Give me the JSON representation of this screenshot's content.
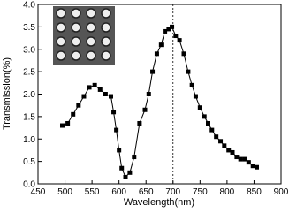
{
  "chart_data": {
    "type": "line",
    "x_label": "Wavelength(nm)",
    "y_label": "Transmission(%)",
    "x": [
      495,
      505,
      515,
      525,
      535,
      545,
      555,
      565,
      575,
      585,
      590,
      595,
      600,
      605,
      612,
      620,
      628,
      638,
      648,
      655,
      662,
      670,
      678,
      685,
      692,
      698,
      705,
      712,
      720,
      728,
      735,
      742,
      750,
      758,
      765,
      772,
      780,
      788,
      795,
      803,
      810,
      818,
      825,
      833,
      840,
      848,
      855
    ],
    "values": [
      1.3,
      1.35,
      1.55,
      1.75,
      1.95,
      2.15,
      2.2,
      2.1,
      2.0,
      1.95,
      1.6,
      1.2,
      0.75,
      0.35,
      0.15,
      0.25,
      0.6,
      1.35,
      1.65,
      2.0,
      2.5,
      2.9,
      3.1,
      3.4,
      3.45,
      3.5,
      3.3,
      3.2,
      2.9,
      2.5,
      2.2,
      1.95,
      1.7,
      1.5,
      1.35,
      1.2,
      1.05,
      0.95,
      0.85,
      0.75,
      0.7,
      0.6,
      0.55,
      0.55,
      0.48,
      0.4,
      0.37
    ],
    "color": "#000000",
    "marker": "square",
    "xlim": [
      450,
      900
    ],
    "xticks": [
      450,
      500,
      550,
      600,
      650,
      700,
      750,
      800,
      850,
      900
    ],
    "ylim": [
      0,
      4
    ],
    "yticks": [
      {
        "value": 0,
        "label": "0.0"
      },
      0.5,
      {
        "value": 1,
        "label": "1.0"
      },
      1.5,
      {
        "value": 2,
        "label": "2.0"
      },
      2.5,
      {
        "value": 3,
        "label": "3.0"
      },
      3.5,
      {
        "value": 4,
        "label": "4.0"
      }
    ],
    "vline": 700
  }
}
